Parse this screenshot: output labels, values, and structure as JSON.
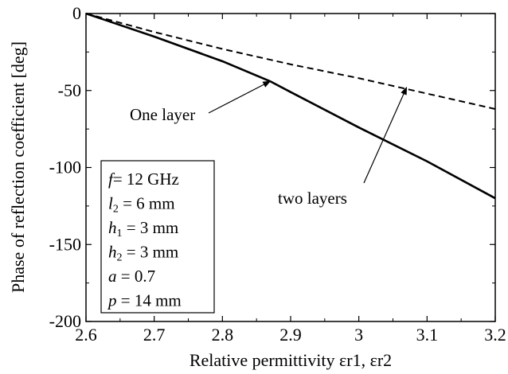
{
  "chart_data": {
    "type": "line",
    "xlabel": "Relative permittivity εr1, εr2",
    "ylabel": "Phase of reflection coefficient [deg]",
    "xlim": [
      2.6,
      3.2
    ],
    "ylim": [
      -200,
      0
    ],
    "x_ticks": [
      2.6,
      2.7,
      2.8,
      2.9,
      3.0,
      3.1,
      3.2
    ],
    "x_tick_labels": [
      "2.6",
      "2.7",
      "2.8",
      "2.9",
      "3",
      "3.1",
      "3.2"
    ],
    "y_ticks": [
      0,
      -50,
      -100,
      -150,
      -200
    ],
    "y_tick_labels": [
      "0",
      "-50",
      "-100",
      "-150",
      "-200"
    ],
    "grid": false,
    "series": [
      {
        "name": "One layer",
        "style": "solid",
        "color": "#000000",
        "x": [
          2.6,
          2.7,
          2.8,
          2.87,
          2.9,
          3.0,
          3.1,
          3.2
        ],
        "y": [
          0,
          -15,
          -31,
          -44,
          -51,
          -74,
          -96,
          -120
        ]
      },
      {
        "name": "two layers",
        "style": "dashed",
        "color": "#000000",
        "x": [
          2.6,
          2.7,
          2.8,
          2.9,
          3.0,
          3.07,
          3.1,
          3.2
        ],
        "y": [
          0,
          -12,
          -23,
          -33,
          -42,
          -49,
          -52,
          -62
        ]
      }
    ],
    "annotations": [
      {
        "text": "One layer",
        "target_x": 2.87,
        "target_y": -44
      },
      {
        "text": "two layers",
        "target_x": 3.07,
        "target_y": -48
      }
    ],
    "parameters_box": {
      "lines": [
        {
          "sym": "f",
          "sub": "",
          "val": "= 12 GHz"
        },
        {
          "sym": "l",
          "sub": "2",
          "val": " = 6 mm"
        },
        {
          "sym": "h",
          "sub": "1",
          "val": " = 3 mm"
        },
        {
          "sym": "h",
          "sub": "2",
          "val": " = 3 mm"
        },
        {
          "sym": "a",
          "sub": "",
          "val": " = 0.7"
        },
        {
          "sym": "p",
          "sub": "",
          "val": " = 14 mm"
        }
      ]
    }
  }
}
